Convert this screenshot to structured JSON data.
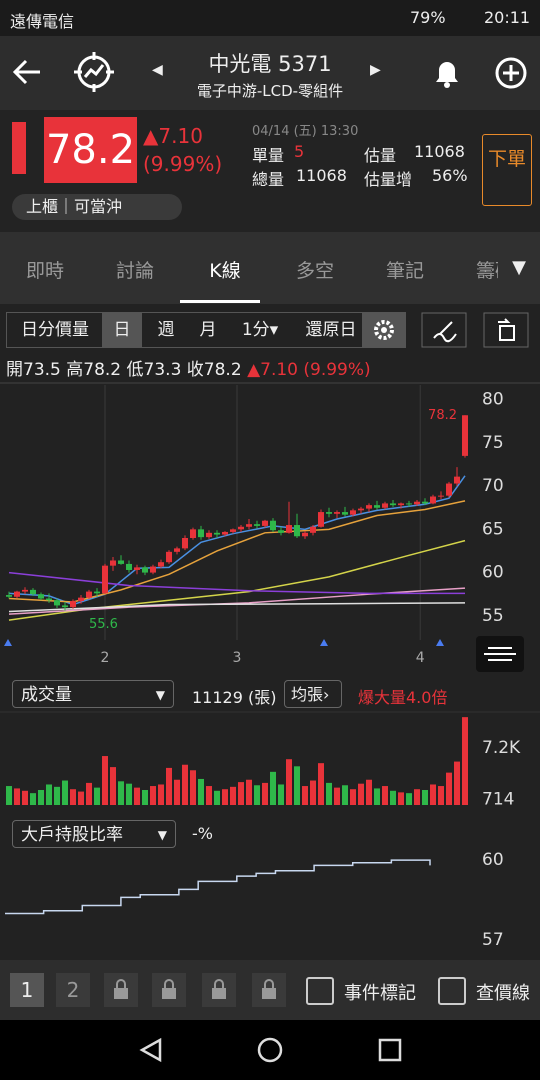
{
  "status_bar": {
    "carrier": "遠傳電信",
    "battery": "79%",
    "time": "20:11"
  },
  "header": {
    "title": "中光電 5371",
    "subtitle": "電子中游-LCD-零組件"
  },
  "quote": {
    "price": "78.2",
    "change": "▲7.10",
    "change_pct": "(9.99%)",
    "datetime": "04/14 (五) 13:30",
    "single_volume_label": "單量",
    "single_volume": "5",
    "est_volume_label": "估量",
    "est_volume": "11068",
    "total_volume_label": "總量",
    "total_volume": "11068",
    "est_increase_label": "估量增",
    "est_increase": "56%",
    "market_tag": "上櫃｜可當沖",
    "order_button": "下單"
  },
  "tabs": [
    "即時",
    "討論",
    "K線",
    "多空",
    "筆記",
    "籌碼"
  ],
  "toolbar": {
    "mode": "日分價量",
    "periods": [
      "日",
      "週",
      "月",
      "1分▾"
    ],
    "adjust": "還原日"
  },
  "ohlc": {
    "open": "開73.5",
    "high": "高78.2",
    "low": "低73.3",
    "close": "收78.2",
    "change": "▲7.10 (9.99%)"
  },
  "chart_data": [
    {
      "type": "candlestick",
      "up_color": "#e8333a",
      "down_color": "#2fb84a",
      "candles": [
        [
          57.4,
          57.8,
          57.0,
          57.2
        ],
        [
          57.2,
          57.9,
          57.0,
          57.8
        ],
        [
          57.8,
          58.3,
          57.5,
          58.0
        ],
        [
          58.0,
          58.2,
          57.3,
          57.5
        ],
        [
          57.5,
          57.7,
          56.8,
          57.0
        ],
        [
          57.0,
          57.6,
          56.5,
          56.8
        ],
        [
          56.8,
          57.0,
          55.9,
          56.2
        ],
        [
          56.2,
          56.6,
          55.6,
          56.0
        ],
        [
          56.0,
          56.9,
          55.8,
          56.7
        ],
        [
          56.7,
          57.4,
          56.4,
          57.1
        ],
        [
          57.1,
          58.0,
          56.9,
          57.8
        ],
        [
          57.8,
          58.2,
          57.2,
          57.6
        ],
        [
          57.6,
          61.0,
          57.5,
          60.8
        ],
        [
          60.8,
          61.8,
          60.2,
          61.4
        ],
        [
          61.4,
          62.0,
          60.9,
          61.0
        ],
        [
          61.0,
          61.4,
          60.0,
          60.3
        ],
        [
          60.3,
          60.9,
          59.8,
          60.6
        ],
        [
          60.6,
          60.8,
          59.7,
          60.0
        ],
        [
          60.0,
          60.9,
          59.8,
          60.7
        ],
        [
          60.7,
          61.5,
          60.5,
          61.2
        ],
        [
          61.2,
          62.6,
          61.0,
          62.4
        ],
        [
          62.4,
          63.0,
          62.1,
          62.8
        ],
        [
          62.8,
          64.3,
          62.6,
          64.0
        ],
        [
          64.0,
          65.2,
          63.8,
          65.0
        ],
        [
          65.0,
          65.4,
          63.8,
          64.1
        ],
        [
          64.1,
          64.9,
          63.9,
          64.6
        ],
        [
          64.6,
          64.9,
          64.0,
          64.4
        ],
        [
          64.4,
          64.8,
          64.2,
          64.7
        ],
        [
          64.7,
          65.1,
          64.5,
          65.0
        ],
        [
          65.0,
          65.5,
          64.7,
          65.3
        ],
        [
          65.3,
          66.2,
          65.0,
          65.6
        ],
        [
          65.6,
          66.0,
          65.1,
          65.4
        ],
        [
          65.4,
          66.1,
          65.2,
          66.0
        ],
        [
          66.0,
          66.3,
          64.7,
          64.9
        ],
        [
          64.9,
          65.3,
          64.3,
          64.6
        ],
        [
          64.6,
          68.2,
          64.5,
          65.5
        ],
        [
          65.5,
          66.8,
          64.0,
          64.2
        ],
        [
          64.2,
          64.8,
          63.9,
          64.6
        ],
        [
          64.6,
          65.5,
          64.3,
          65.3
        ],
        [
          65.3,
          67.3,
          65.2,
          67.0
        ],
        [
          67.0,
          67.5,
          66.4,
          66.8
        ],
        [
          66.8,
          67.2,
          66.3,
          67.0
        ],
        [
          67.0,
          67.6,
          66.5,
          66.7
        ],
        [
          66.7,
          67.4,
          66.5,
          67.2
        ],
        [
          67.2,
          67.6,
          66.8,
          67.4
        ],
        [
          67.4,
          68.0,
          67.0,
          67.8
        ],
        [
          67.8,
          68.3,
          67.3,
          67.5
        ],
        [
          67.5,
          68.2,
          67.3,
          68.0
        ],
        [
          68.0,
          68.4,
          67.6,
          67.8
        ],
        [
          67.8,
          68.1,
          67.4,
          68.0
        ],
        [
          68.0,
          68.3,
          67.6,
          67.9
        ],
        [
          67.9,
          68.4,
          67.7,
          68.2
        ],
        [
          68.2,
          68.6,
          67.8,
          68.0
        ],
        [
          68.0,
          69.0,
          67.9,
          68.8
        ],
        [
          68.8,
          69.4,
          68.5,
          68.9
        ],
        [
          68.9,
          70.5,
          68.7,
          70.3
        ],
        [
          70.3,
          72.2,
          70.0,
          71.1
        ],
        [
          73.5,
          78.2,
          73.3,
          78.2
        ]
      ],
      "moving_averages": [
        {
          "color": "#4a90e2",
          "points": [
            [
              0,
              57.6
            ],
            [
              5,
              57.3
            ],
            [
              8,
              56.3
            ],
            [
              12,
              57.5
            ],
            [
              16,
              60.5
            ],
            [
              20,
              60.6
            ],
            [
              24,
              63.5
            ],
            [
              28,
              64.5
            ],
            [
              33,
              65.4
            ],
            [
              37,
              65.0
            ],
            [
              41,
              66.2
            ],
            [
              46,
              67.2
            ],
            [
              52,
              67.9
            ],
            [
              55,
              68.6
            ],
            [
              57,
              71.2
            ]
          ]
        },
        {
          "color": "#e6a23c",
          "points": [
            [
              0,
              57.0
            ],
            [
              8,
              56.6
            ],
            [
              14,
              58.0
            ],
            [
              20,
              59.8
            ],
            [
              26,
              62.5
            ],
            [
              32,
              64.6
            ],
            [
              40,
              65.0
            ],
            [
              46,
              66.6
            ],
            [
              52,
              67.3
            ],
            [
              57,
              68.3
            ]
          ]
        },
        {
          "color": "#d4d44a",
          "points": [
            [
              0,
              54.5
            ],
            [
              10,
              55.8
            ],
            [
              20,
              56.8
            ],
            [
              30,
              57.8
            ],
            [
              40,
              59.5
            ],
            [
              50,
              62.0
            ],
            [
              57,
              63.7
            ]
          ]
        },
        {
          "color": "#e8a0c8",
          "points": [
            [
              0,
              55.2
            ],
            [
              15,
              56.0
            ],
            [
              30,
              56.5
            ],
            [
              45,
              57.5
            ],
            [
              57,
              58.2
            ]
          ]
        },
        {
          "color": "#e0e0e0",
          "points": [
            [
              0,
              55.5
            ],
            [
              20,
              56.3
            ],
            [
              40,
              56.4
            ],
            [
              57,
              56.5
            ]
          ]
        },
        {
          "color": "#8b3fd9",
          "points": [
            [
              0,
              60.0
            ],
            [
              15,
              58.5
            ],
            [
              30,
              57.9
            ],
            [
              45,
              57.6
            ],
            [
              57,
              57.6
            ]
          ]
        }
      ],
      "ylim": [
        52.2,
        81.7
      ],
      "yticks": [
        55,
        60,
        65,
        70,
        75,
        80
      ],
      "day_breaks": [
        {
          "index": 12,
          "label": "2"
        },
        {
          "index": 28.5,
          "label": "3"
        },
        {
          "index": 51.4,
          "label": "4"
        }
      ],
      "high_marker": 78.2,
      "low_marker": 55.6
    },
    {
      "type": "volume",
      "selector": "成交量",
      "total": "11129 (張)",
      "avg_selector": "均張",
      "alert": "爆大量4.0倍",
      "values": [
        2400,
        2100,
        1800,
        1500,
        1900,
        2600,
        2300,
        3100,
        2000,
        1700,
        2800,
        2200,
        6200,
        4800,
        3000,
        2700,
        2200,
        1900,
        2400,
        2600,
        4700,
        3200,
        5100,
        4400,
        3300,
        2400,
        1800,
        2000,
        2300,
        2900,
        3200,
        2500,
        2800,
        4200,
        2600,
        5800,
        4900,
        2400,
        3100,
        5300,
        2800,
        2200,
        2500,
        2000,
        2700,
        3200,
        2100,
        2400,
        1800,
        1600,
        1500,
        2000,
        1900,
        2600,
        2400,
        4100,
        5500,
        11129
      ],
      "ylim": [
        0,
        11400
      ],
      "yticks": [
        {
          "value": 7200,
          "label": "7.2K"
        },
        714
      ]
    },
    {
      "type": "line",
      "selector": "大戶持股比率",
      "current": "-%",
      "color": "#c8d8f0",
      "values": [
        58.0,
        58.0,
        58.1,
        58.1,
        58.3,
        58.3,
        58.6,
        58.7,
        58.7,
        58.9,
        59.2,
        59.2,
        59.4,
        59.5,
        59.6,
        59.6,
        59.8,
        59.8,
        59.9,
        59.9,
        60.0,
        60.0,
        59.8
      ],
      "ylim": [
        56.63,
        60.94
      ],
      "yticks": [
        57,
        60
      ]
    }
  ],
  "bottom_bar": {
    "pages": [
      "1",
      "2"
    ],
    "event_mark": "事件標記",
    "price_line": "查價線"
  }
}
